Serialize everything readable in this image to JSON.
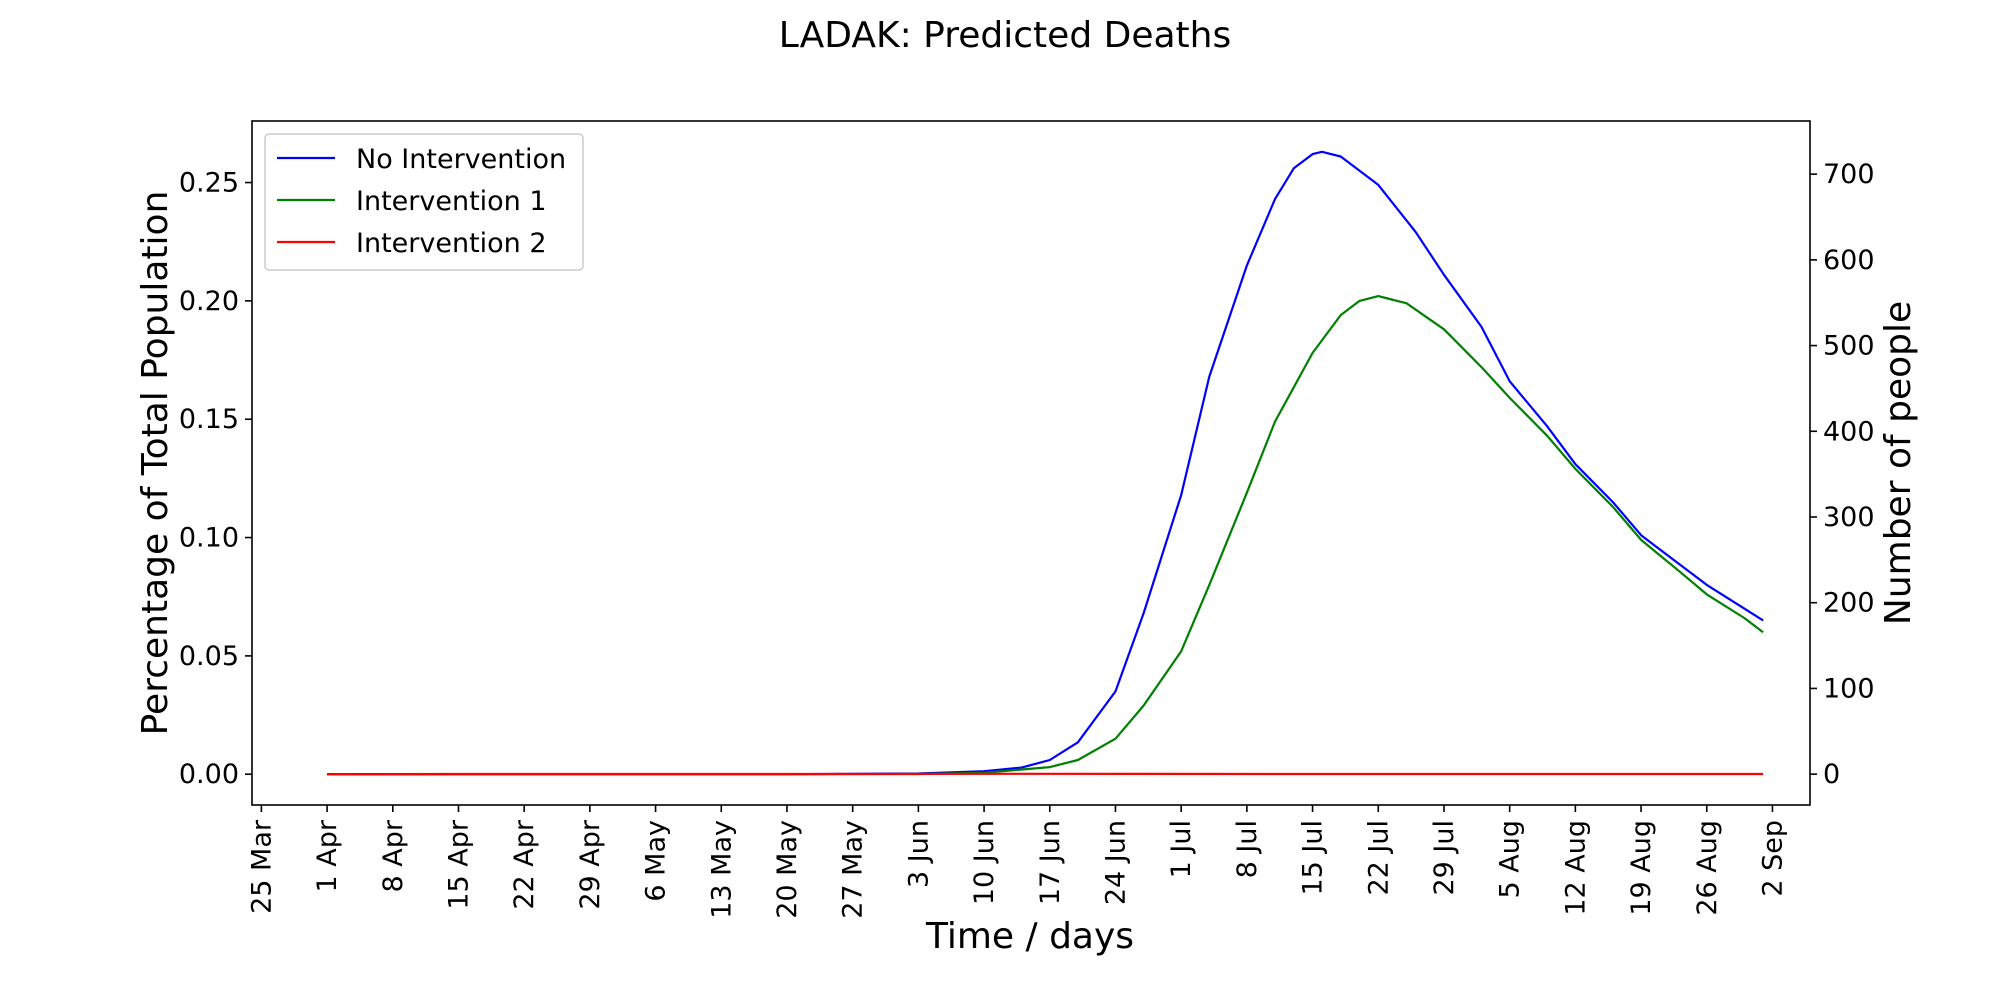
{
  "chart_data": {
    "type": "line",
    "title": "LADAK: Predicted Deaths",
    "xlabel": "Time / days",
    "ylabel_left": "Percentage of Total Population",
    "ylabel_right": "Number of people",
    "x_axis": {
      "type": "date",
      "year": 2020,
      "range": [
        "2020-03-24",
        "2020-09-06"
      ],
      "ticks": [
        "2020-03-25",
        "2020-04-01",
        "2020-04-08",
        "2020-04-15",
        "2020-04-22",
        "2020-04-29",
        "2020-05-06",
        "2020-05-13",
        "2020-05-20",
        "2020-05-27",
        "2020-06-03",
        "2020-06-10",
        "2020-06-17",
        "2020-06-24",
        "2020-07-01",
        "2020-07-08",
        "2020-07-15",
        "2020-07-22",
        "2020-07-29",
        "2020-08-05",
        "2020-08-12",
        "2020-08-19",
        "2020-08-26",
        "2020-09-02"
      ],
      "tick_labels": [
        "25 Mar",
        "1 Apr",
        "8 Apr",
        "15 Apr",
        "22 Apr",
        "29 Apr",
        "6 May",
        "13 May",
        "20 May",
        "27 May",
        "3 Jun",
        "10 Jun",
        "17 Jun",
        "24 Jun",
        "1 Jul",
        "8 Jul",
        "15 Jul",
        "22 Jul",
        "29 Jul",
        "5 Aug",
        "12 Aug",
        "19 Aug",
        "26 Aug",
        "2 Sep"
      ]
    },
    "y_left": {
      "range": [
        -0.013,
        0.276
      ],
      "ticks": [
        0.0,
        0.05,
        0.1,
        0.15,
        0.2,
        0.25
      ],
      "tick_labels": [
        "0.00",
        "0.05",
        "0.10",
        "0.15",
        "0.20",
        "0.25"
      ]
    },
    "y_right": {
      "range": [
        -36,
        762
      ],
      "ticks": [
        0,
        100,
        200,
        300,
        400,
        500,
        600,
        700
      ],
      "tick_labels": [
        "0",
        "100",
        "200",
        "300",
        "400",
        "500",
        "600",
        "700"
      ]
    },
    "legend": {
      "placement": "upper-left"
    },
    "grid": false,
    "series": [
      {
        "name": "No Intervention",
        "color": "#0000ff",
        "x": [
          "2020-04-01",
          "2020-05-20",
          "2020-06-03",
          "2020-06-10",
          "2020-06-14",
          "2020-06-17",
          "2020-06-20",
          "2020-06-24",
          "2020-06-27",
          "2020-07-01",
          "2020-07-04",
          "2020-07-08",
          "2020-07-11",
          "2020-07-13",
          "2020-07-15",
          "2020-07-16",
          "2020-07-18",
          "2020-07-22",
          "2020-07-26",
          "2020-07-29",
          "2020-08-02",
          "2020-08-05",
          "2020-08-09",
          "2020-08-12",
          "2020-08-16",
          "2020-08-19",
          "2020-08-23",
          "2020-08-26",
          "2020-08-30",
          "2020-09-01"
        ],
        "values": [
          0.0,
          0.0,
          0.0003,
          0.0013,
          0.0028,
          0.006,
          0.0135,
          0.035,
          0.068,
          0.118,
          0.168,
          0.215,
          0.243,
          0.256,
          0.262,
          0.263,
          0.261,
          0.249,
          0.229,
          0.211,
          0.189,
          0.166,
          0.147,
          0.131,
          0.115,
          0.101,
          0.089,
          0.08,
          0.07,
          0.065
        ]
      },
      {
        "name": "Intervention 1",
        "color": "#008000",
        "x": [
          "2020-04-01",
          "2020-05-20",
          "2020-06-03",
          "2020-06-10",
          "2020-06-17",
          "2020-06-20",
          "2020-06-24",
          "2020-06-27",
          "2020-07-01",
          "2020-07-04",
          "2020-07-08",
          "2020-07-11",
          "2020-07-15",
          "2020-07-18",
          "2020-07-20",
          "2020-07-22",
          "2020-07-23",
          "2020-07-25",
          "2020-07-29",
          "2020-08-02",
          "2020-08-05",
          "2020-08-09",
          "2020-08-12",
          "2020-08-16",
          "2020-08-19",
          "2020-08-23",
          "2020-08-26",
          "2020-08-30",
          "2020-09-01"
        ],
        "values": [
          0.0,
          0.0,
          0.0001,
          0.0006,
          0.003,
          0.006,
          0.015,
          0.029,
          0.052,
          0.08,
          0.119,
          0.149,
          0.178,
          0.194,
          0.2,
          0.202,
          0.201,
          0.199,
          0.188,
          0.172,
          0.159,
          0.143,
          0.129,
          0.113,
          0.099,
          0.086,
          0.076,
          0.066,
          0.06
        ]
      },
      {
        "name": "Intervention 2",
        "color": "#ff0000",
        "x": [
          "2020-04-01",
          "2020-04-15",
          "2020-05-01",
          "2020-05-20",
          "2020-06-15",
          "2020-07-15",
          "2020-08-15",
          "2020-09-01"
        ],
        "values": [
          0.0,
          0.0001,
          0.0001,
          0.0001,
          0.0002,
          0.0001,
          0.0001,
          0.0001
        ]
      }
    ]
  }
}
